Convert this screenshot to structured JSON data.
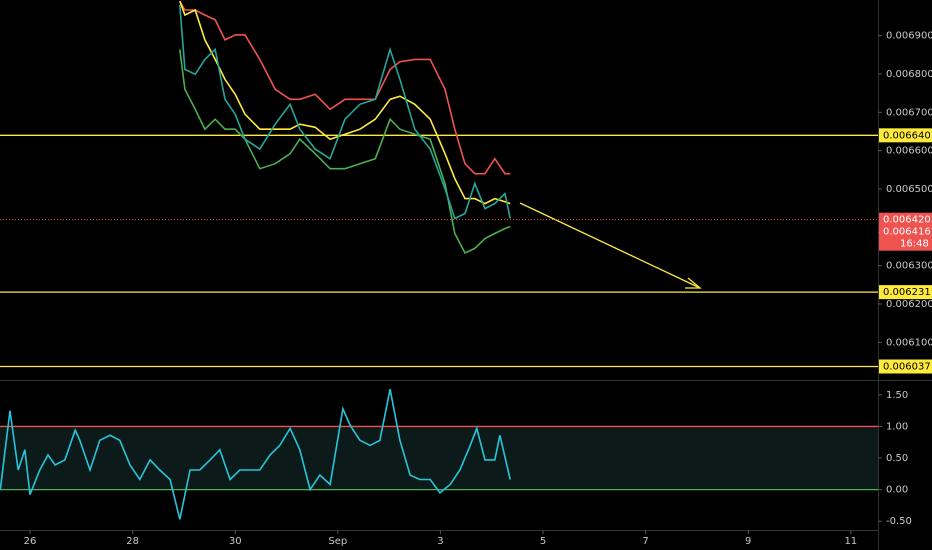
{
  "chart_data": [
    {
      "type": "line",
      "x": [
        2.92,
        3.02,
        3.22,
        3.41,
        3.61,
        3.8,
        4.0,
        4.19,
        4.48,
        4.78,
        5.07,
        5.26,
        5.56,
        5.85,
        6.14,
        6.43,
        6.73,
        7.02,
        7.21,
        7.5,
        7.8,
        8.09,
        8.28,
        8.48,
        8.67,
        8.87,
        9.06,
        9.26,
        9.36
      ],
      "xlim": [
        -0.585,
        16.53
      ],
      "ylim": [
        0.006007,
        0.006993
      ],
      "yticks": [
        {
          "value": 0.0069,
          "label": "0.006900"
        },
        {
          "value": 0.0068,
          "label": "0.006800"
        },
        {
          "value": 0.0067,
          "label": "0.006700"
        },
        {
          "value": 0.0066,
          "label": "0.006600"
        },
        {
          "value": 0.0065,
          "label": "0.006500"
        },
        {
          "value": 0.0063,
          "label": "0.006300"
        },
        {
          "value": 0.0062,
          "label": "0.006200"
        },
        {
          "value": 0.0061,
          "label": "0.006100"
        }
      ],
      "series": [
        {
          "color": "#ef5350",
          "values": [
            0.00699,
            0.006967,
            0.006967,
            0.006954,
            0.006941,
            0.006889,
            0.006902,
            0.006902,
            0.006838,
            0.00676,
            0.006734,
            0.006734,
            0.006747,
            0.006708,
            0.006734,
            0.006734,
            0.006734,
            0.006812,
            0.006832,
            0.006838,
            0.006838,
            0.00676,
            0.006656,
            0.006566,
            0.00654,
            0.00654,
            0.006579,
            0.00654,
            0.00654
          ]
        },
        {
          "color": "#4caf50",
          "values": [
            0.006864,
            0.00676,
            0.006708,
            0.006656,
            0.006682,
            0.006656,
            0.006656,
            0.00663,
            0.006553,
            0.006566,
            0.006592,
            0.00663,
            0.006592,
            0.006553,
            0.006553,
            0.006566,
            0.006579,
            0.006682,
            0.006656,
            0.006643,
            0.00663,
            0.006514,
            0.006384,
            0.006333,
            0.006345,
            0.006371,
            0.006384,
            0.006397,
            0.006402
          ]
        },
        {
          "color": "#ffeb3b",
          "values": [
            0.00699,
            0.006954,
            0.006967,
            0.006889,
            0.006838,
            0.006786,
            0.006747,
            0.006695,
            0.006656,
            0.006656,
            0.006656,
            0.006669,
            0.006661,
            0.00663,
            0.006643,
            0.006656,
            0.006682,
            0.006734,
            0.006742,
            0.006721,
            0.006682,
            0.006592,
            0.006527,
            0.006475,
            0.006475,
            0.006462,
            0.006475,
            0.006467,
            0.006462
          ]
        },
        {
          "color": "#26a69a",
          "values": [
            0.00698,
            0.006812,
            0.006799,
            0.006838,
            0.006864,
            0.006734,
            0.006695,
            0.00663,
            0.006604,
            0.006669,
            0.006721,
            0.006656,
            0.006604,
            0.006579,
            0.006682,
            0.006721,
            0.006734,
            0.006864,
            0.006786,
            0.006656,
            0.006604,
            0.006501,
            0.006423,
            0.006436,
            0.006514,
            0.006449,
            0.006462,
            0.006488,
            0.006423
          ]
        }
      ],
      "hlines": [
        {
          "value": 0.00664,
          "label": "0.006640"
        },
        {
          "value": 0.006231,
          "label": "0.006231"
        },
        {
          "value": 0.006037,
          "label": "0.006037"
        }
      ],
      "hline_color": "#ffeb3b",
      "last_price": {
        "value": 0.00642,
        "label": "0.006420"
      },
      "bid_price": {
        "value": 0.006416,
        "label": "0.006416"
      },
      "countdown": "16:48",
      "price_color": "#ef5350"
    },
    {
      "type": "line",
      "x": [
        -0.58,
        -0.39,
        -0.23,
        -0.1,
        0,
        0.19,
        0.35,
        0.49,
        0.68,
        0.88,
        0.97,
        1.17,
        1.36,
        1.56,
        1.75,
        1.95,
        2.14,
        2.34,
        2.53,
        2.73,
        2.92,
        3.12,
        3.31,
        3.51,
        3.7,
        3.9,
        4.09,
        4.48,
        4.68,
        4.87,
        5.07,
        5.26,
        5.46,
        5.65,
        5.85,
        6.1,
        6.24,
        6.43,
        6.63,
        6.82,
        7.02,
        7.21,
        7.41,
        7.6,
        7.8,
        7.99,
        8.19,
        8.38,
        8.58,
        8.71,
        8.87,
        9.06,
        9.16,
        9.36
      ],
      "xlim": [
        -0.585,
        16.53
      ],
      "ylim": [
        -0.64,
        1.72
      ],
      "yticks": [
        {
          "value": 1.5,
          "label": "1.50"
        },
        {
          "value": 1,
          "label": "1.00"
        },
        {
          "value": 0.5,
          "label": "0.50"
        },
        {
          "value": 0,
          "label": "0.00"
        },
        {
          "value": -0.5,
          "label": "-0.50"
        }
      ],
      "xticks": [
        {
          "value": 0,
          "label": "26"
        },
        {
          "value": 2,
          "label": "28"
        },
        {
          "value": 4,
          "label": "30"
        },
        {
          "value": 6,
          "label": "Sep"
        },
        {
          "value": 8,
          "label": "3"
        },
        {
          "value": 10,
          "label": "5"
        },
        {
          "value": 12,
          "label": "7"
        },
        {
          "value": 14,
          "label": "9"
        },
        {
          "value": 16,
          "label": "11"
        }
      ],
      "upper_level": 1,
      "upper_color": "#ef5350",
      "lower_level": 0,
      "lower_color": "#4caf50",
      "series": [
        {
          "color": "#26c6da",
          "values": [
            0,
            1.25,
            0.31,
            0.63,
            -0.08,
            0.31,
            0.55,
            0.39,
            0.47,
            0.94,
            0.78,
            0.31,
            0.78,
            0.86,
            0.78,
            0.39,
            0.16,
            0.47,
            0.31,
            0.16,
            -0.47,
            0.31,
            0.31,
            0.47,
            0.63,
            0.16,
            0.31,
            0.31,
            0.55,
            0.7,
            0.97,
            0.63,
            0,
            0.23,
            0.08,
            1.28,
            1.02,
            0.78,
            0.7,
            0.78,
            1.59,
            0.78,
            0.23,
            0.16,
            0.16,
            -0.05,
            0.08,
            0.31,
            0.7,
            0.97,
            0.47,
            0.47,
            0.86,
            0.16
          ]
        }
      ]
    }
  ]
}
